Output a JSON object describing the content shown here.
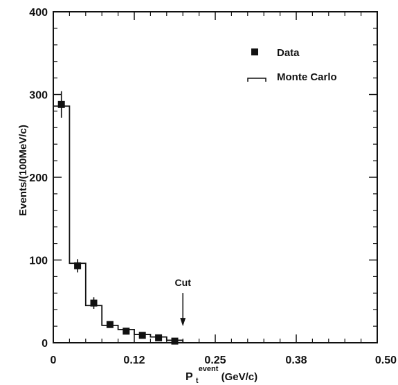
{
  "chart_data": {
    "type": "bar",
    "title": "",
    "xlabel": "P",
    "xlabel_sub": "t",
    "xlabel_sup": "event",
    "xlabel_unit": "(GeV/c)",
    "ylabel": "Events/(100MeV/c)",
    "xlim": [
      0,
      0.5
    ],
    "ylim": [
      0,
      400
    ],
    "x_ticks": [
      0,
      0.125,
      0.25,
      0.375,
      0.5
    ],
    "x_tick_labels": [
      "0",
      "0.12",
      "0.25",
      "0.38",
      "0.50"
    ],
    "y_ticks": [
      0,
      100,
      200,
      300,
      400
    ],
    "y_tick_labels": [
      "0",
      "100",
      "200",
      "300",
      "400"
    ],
    "grid": false,
    "legend_position": "top-right",
    "series": [
      {
        "name": "Data",
        "kind": "points-with-error",
        "x": [
          0.0125,
          0.0375,
          0.0625,
          0.0875,
          0.1125,
          0.1375,
          0.1625,
          0.1875
        ],
        "y": [
          288,
          93,
          48,
          22,
          14,
          9,
          6,
          2
        ],
        "err": [
          16,
          8,
          7,
          4,
          3,
          2,
          2,
          1
        ]
      },
      {
        "name": "Monte Carlo",
        "kind": "histogram-step",
        "bin_edges": [
          0,
          0.025,
          0.05,
          0.075,
          0.1,
          0.125,
          0.15,
          0.175,
          0.2
        ],
        "values": [
          286,
          96,
          45,
          21,
          16,
          10,
          7,
          3
        ]
      }
    ],
    "annotations": [
      {
        "text": "Cut",
        "x": 0.2,
        "arrow_to_y": 20
      }
    ]
  }
}
